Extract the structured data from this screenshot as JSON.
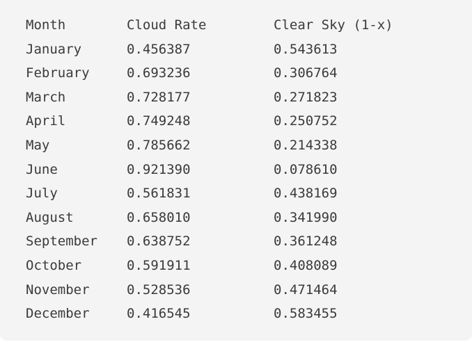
{
  "table": {
    "headers": [
      "Month",
      "Cloud Rate",
      "Clear Sky (1-x)"
    ],
    "rows": [
      [
        "January",
        "0.456387",
        "0.543613"
      ],
      [
        "February",
        "0.693236",
        "0.306764"
      ],
      [
        "March",
        "0.728177",
        "0.271823"
      ],
      [
        "April",
        "0.749248",
        "0.250752"
      ],
      [
        "May",
        "0.785662",
        "0.214338"
      ],
      [
        "June",
        "0.921390",
        "0.078610"
      ],
      [
        "July",
        "0.561831",
        "0.438169"
      ],
      [
        "August",
        "0.658010",
        "0.341990"
      ],
      [
        "September",
        "0.638752",
        "0.361248"
      ],
      [
        "October",
        "0.591911",
        "0.408089"
      ],
      [
        "November",
        "0.528536",
        "0.471464"
      ],
      [
        "December",
        "0.416545",
        "0.583455"
      ]
    ]
  }
}
